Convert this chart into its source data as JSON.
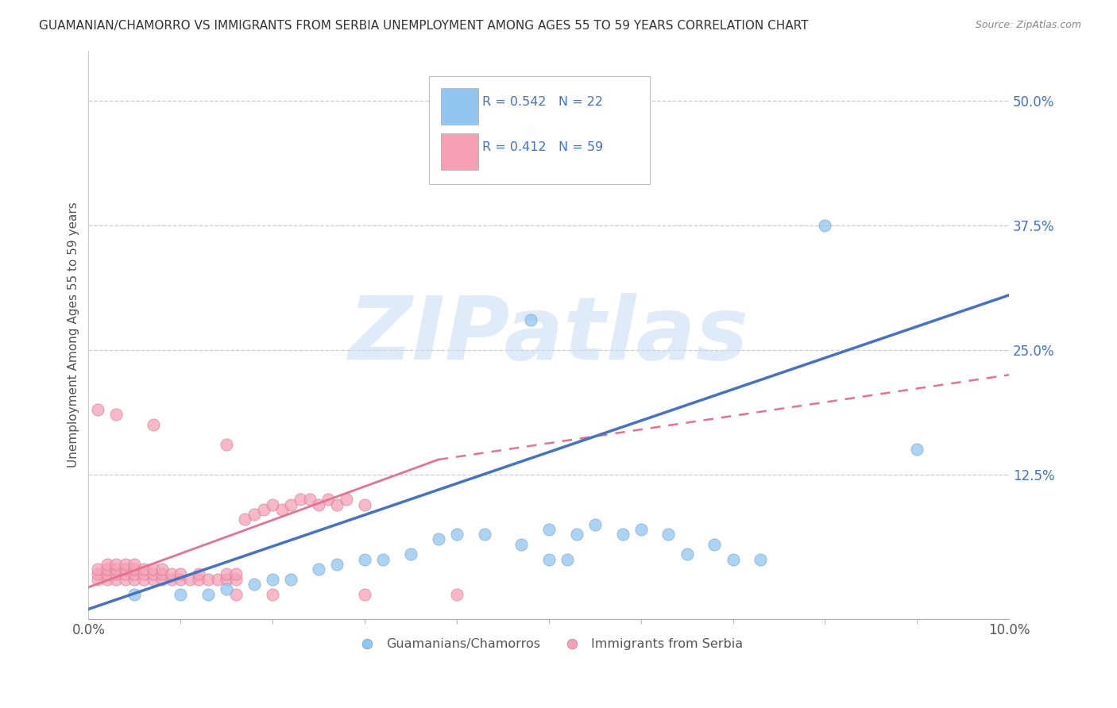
{
  "title": "GUAMANIAN/CHAMORRO VS IMMIGRANTS FROM SERBIA UNEMPLOYMENT AMONG AGES 55 TO 59 YEARS CORRELATION CHART",
  "source": "Source: ZipAtlas.com",
  "ylabel": "Unemployment Among Ages 55 to 59 years",
  "legend_label1": "Guamanians/Chamorros",
  "legend_label2": "Immigrants from Serbia",
  "watermark": "ZIPatlas",
  "blue_color": "#92C5F0",
  "pink_color": "#F5A0B5",
  "blue_line_color": "#4472C4",
  "pink_line_color": "#E87090",
  "xlim": [
    0.0,
    0.1
  ],
  "ylim": [
    -0.02,
    0.55
  ],
  "ytick_vals": [
    0.125,
    0.25,
    0.375,
    0.5
  ],
  "ytick_labels": [
    "12.5%",
    "25.0%",
    "37.5%",
    "50.0%"
  ],
  "blue_scatter": [
    [
      0.005,
      0.005
    ],
    [
      0.01,
      0.005
    ],
    [
      0.013,
      0.005
    ],
    [
      0.015,
      0.01
    ],
    [
      0.018,
      0.015
    ],
    [
      0.02,
      0.02
    ],
    [
      0.022,
      0.02
    ],
    [
      0.025,
      0.03
    ],
    [
      0.027,
      0.035
    ],
    [
      0.03,
      0.04
    ],
    [
      0.032,
      0.04
    ],
    [
      0.035,
      0.045
    ],
    [
      0.038,
      0.06
    ],
    [
      0.04,
      0.065
    ],
    [
      0.043,
      0.065
    ],
    [
      0.047,
      0.055
    ],
    [
      0.05,
      0.07
    ],
    [
      0.053,
      0.065
    ],
    [
      0.055,
      0.075
    ],
    [
      0.058,
      0.065
    ],
    [
      0.06,
      0.07
    ],
    [
      0.063,
      0.065
    ],
    [
      0.065,
      0.045
    ],
    [
      0.048,
      0.28
    ],
    [
      0.048,
      0.47
    ],
    [
      0.08,
      0.375
    ],
    [
      0.09,
      0.15
    ],
    [
      0.068,
      0.055
    ],
    [
      0.07,
      0.04
    ],
    [
      0.073,
      0.04
    ],
    [
      0.05,
      0.04
    ],
    [
      0.052,
      0.04
    ]
  ],
  "pink_scatter": [
    [
      0.001,
      0.02
    ],
    [
      0.001,
      0.025
    ],
    [
      0.001,
      0.03
    ],
    [
      0.002,
      0.02
    ],
    [
      0.002,
      0.025
    ],
    [
      0.002,
      0.03
    ],
    [
      0.002,
      0.035
    ],
    [
      0.003,
      0.02
    ],
    [
      0.003,
      0.025
    ],
    [
      0.003,
      0.03
    ],
    [
      0.003,
      0.035
    ],
    [
      0.004,
      0.02
    ],
    [
      0.004,
      0.025
    ],
    [
      0.004,
      0.03
    ],
    [
      0.004,
      0.035
    ],
    [
      0.005,
      0.02
    ],
    [
      0.005,
      0.025
    ],
    [
      0.005,
      0.03
    ],
    [
      0.005,
      0.035
    ],
    [
      0.006,
      0.02
    ],
    [
      0.006,
      0.025
    ],
    [
      0.006,
      0.03
    ],
    [
      0.007,
      0.02
    ],
    [
      0.007,
      0.025
    ],
    [
      0.007,
      0.03
    ],
    [
      0.008,
      0.02
    ],
    [
      0.008,
      0.025
    ],
    [
      0.008,
      0.03
    ],
    [
      0.009,
      0.02
    ],
    [
      0.009,
      0.025
    ],
    [
      0.01,
      0.02
    ],
    [
      0.01,
      0.025
    ],
    [
      0.011,
      0.02
    ],
    [
      0.012,
      0.02
    ],
    [
      0.012,
      0.025
    ],
    [
      0.013,
      0.02
    ],
    [
      0.014,
      0.02
    ],
    [
      0.015,
      0.02
    ],
    [
      0.015,
      0.025
    ],
    [
      0.016,
      0.02
    ],
    [
      0.016,
      0.025
    ],
    [
      0.017,
      0.08
    ],
    [
      0.018,
      0.085
    ],
    [
      0.019,
      0.09
    ],
    [
      0.02,
      0.095
    ],
    [
      0.021,
      0.09
    ],
    [
      0.022,
      0.095
    ],
    [
      0.023,
      0.1
    ],
    [
      0.024,
      0.1
    ],
    [
      0.025,
      0.095
    ],
    [
      0.026,
      0.1
    ],
    [
      0.027,
      0.095
    ],
    [
      0.028,
      0.1
    ],
    [
      0.03,
      0.095
    ],
    [
      0.001,
      0.19
    ],
    [
      0.003,
      0.185
    ],
    [
      0.007,
      0.175
    ],
    [
      0.015,
      0.155
    ],
    [
      0.016,
      0.005
    ],
    [
      0.02,
      0.005
    ],
    [
      0.03,
      0.005
    ],
    [
      0.04,
      0.005
    ]
  ],
  "blue_line": [
    [
      0.0,
      -0.01
    ],
    [
      0.1,
      0.305
    ]
  ],
  "pink_line_solid": [
    [
      0.0,
      0.012
    ],
    [
      0.038,
      0.14
    ]
  ],
  "pink_line_dashed": [
    [
      0.038,
      0.14
    ],
    [
      0.1,
      0.225
    ]
  ]
}
